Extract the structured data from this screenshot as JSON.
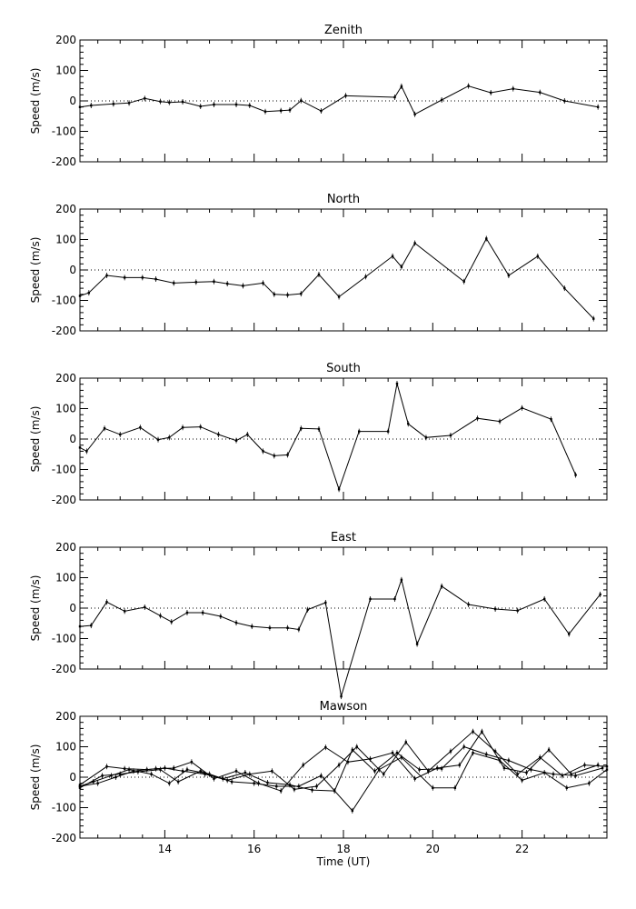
{
  "chart_data": {
    "type": "line",
    "xlabel": "Time (UT)",
    "xticks": [
      14,
      16,
      18,
      20,
      22
    ],
    "xlim": [
      12.1,
      23.9
    ],
    "panels": [
      {
        "title": "Zenith",
        "ylabel": "Speed (m/s)",
        "ylim": [
          -200,
          200
        ],
        "yticks": [
          200,
          100,
          0,
          -100,
          -200
        ],
        "series": [
          {
            "x": [
              12.1,
              12.35,
              12.85,
              13.2,
              13.55,
              13.9,
              14.1,
              14.4,
              14.8,
              15.1,
              15.6,
              15.9,
              16.25,
              16.6,
              16.8,
              17.05,
              17.5,
              18.05,
              19.15,
              19.3,
              19.6,
              20.2,
              20.8,
              21.3,
              21.8,
              22.4,
              22.95,
              23.7
            ],
            "y": [
              -20,
              -15,
              -10,
              -7,
              8,
              -2,
              -5,
              -3,
              -18,
              -12,
              -12,
              -15,
              -35,
              -32,
              -30,
              1,
              -33,
              17,
              12,
              48,
              -44,
              3,
              49,
              27,
              40,
              28,
              0,
              -20
            ]
          }
        ]
      },
      {
        "title": "North",
        "ylabel": "Speed (m/s)",
        "ylim": [
          -200,
          200
        ],
        "yticks": [
          200,
          100,
          0,
          -100,
          -200
        ],
        "series": [
          {
            "x": [
              12.1,
              12.3,
              12.7,
              13.1,
              13.5,
              13.8,
              14.2,
              14.7,
              15.1,
              15.4,
              15.75,
              16.2,
              16.45,
              16.75,
              17.05,
              17.45,
              17.9,
              18.5,
              19.1,
              19.3,
              19.6,
              20.7,
              21.2,
              21.7,
              22.35,
              22.95,
              23.6
            ],
            "y": [
              -85,
              -75,
              -18,
              -25,
              -25,
              -30,
              -43,
              -40,
              -38,
              -45,
              -52,
              -43,
              -80,
              -82,
              -78,
              -15,
              -88,
              -22,
              45,
              10,
              88,
              -38,
              103,
              -18,
              45,
              -60,
              -160
            ]
          }
        ]
      },
      {
        "title": "South",
        "ylabel": "Speed (m/s)",
        "ylim": [
          -200,
          200
        ],
        "yticks": [
          200,
          100,
          0,
          -100,
          -200
        ],
        "series": [
          {
            "x": [
              12.1,
              12.25,
              12.65,
              13.0,
              13.45,
              13.85,
              14.1,
              14.4,
              14.8,
              15.2,
              15.6,
              15.85,
              16.2,
              16.45,
              16.75,
              17.05,
              17.45,
              17.9,
              18.35,
              19.0,
              19.2,
              19.45,
              19.85,
              20.4,
              21.0,
              21.5,
              22.0,
              22.65,
              23.2
            ],
            "y": [
              -28,
              -40,
              35,
              15,
              38,
              -2,
              5,
              38,
              40,
              15,
              -5,
              15,
              -40,
              -55,
              -52,
              35,
              33,
              -165,
              25,
              25,
              182,
              50,
              5,
              12,
              68,
              58,
              102,
              65,
              -118
            ]
          }
        ]
      },
      {
        "title": "East",
        "ylabel": "Speed (m/s)",
        "ylim": [
          -200,
          200
        ],
        "yticks": [
          200,
          100,
          0,
          -100,
          -200
        ],
        "series": [
          {
            "x": [
              12.1,
              12.35,
              12.7,
              13.1,
              13.55,
              13.9,
              14.15,
              14.5,
              14.85,
              15.25,
              15.6,
              15.95,
              16.35,
              16.75,
              17.0,
              17.2,
              17.6,
              17.95,
              18.6,
              19.15,
              19.3,
              19.65,
              20.2,
              20.8,
              21.4,
              21.9,
              22.5,
              23.05,
              23.75
            ],
            "y": [
              -60,
              -57,
              20,
              -10,
              3,
              -25,
              -45,
              -15,
              -15,
              -27,
              -48,
              -60,
              -65,
              -65,
              -70,
              -5,
              18,
              -290,
              30,
              30,
              93,
              -118,
              72,
              12,
              -3,
              -8,
              30,
              -85,
              45
            ]
          }
        ]
      },
      {
        "title": "Mawson",
        "ylabel": "Speed (m/s)",
        "ylim": [
          -200,
          200
        ],
        "yticks": [
          200,
          100,
          0,
          -100,
          -200
        ],
        "series": [
          {
            "x": [
              12.1,
              12.6,
              13.0,
              13.4,
              13.9,
              14.3,
              14.8,
              15.3,
              15.8,
              16.3,
              16.8,
              17.3,
              17.8,
              18.2,
              18.7,
              19.2,
              19.7,
              20.2,
              20.7,
              21.2,
              21.7,
              22.2,
              22.7,
              23.2,
              23.8
            ],
            "y": [
              -35,
              5,
              10,
              18,
              25,
              -15,
              20,
              -5,
              15,
              -18,
              -25,
              -42,
              -45,
              90,
              20,
              80,
              25,
              28,
              100,
              75,
              55,
              25,
              10,
              5,
              30
            ]
          },
          {
            "x": [
              12.1,
              12.5,
              12.9,
              13.3,
              13.8,
              14.2,
              14.6,
              15.1,
              15.6,
              16.1,
              16.6,
              17.1,
              17.6,
              18.1,
              18.6,
              19.1,
              19.6,
              20.1,
              20.6,
              21.1,
              21.6,
              22.1,
              22.6,
              23.1,
              23.7
            ],
            "y": [
              -30,
              -20,
              0,
              20,
              28,
              30,
              50,
              -5,
              20,
              -20,
              -45,
              40,
              98,
              50,
              60,
              80,
              -5,
              30,
              40,
              150,
              30,
              15,
              90,
              10,
              40
            ]
          },
          {
            "x": [
              12.1,
              12.7,
              13.1,
              13.6,
              14.0,
              14.4,
              14.9,
              15.4,
              15.9,
              16.4,
              16.9,
              17.4,
              17.9,
              18.3,
              18.9,
              19.4,
              19.9,
              20.4,
              20.9,
              21.4,
              21.9,
              22.4,
              22.9,
              23.4,
              23.9
            ],
            "y": [
              -25,
              35,
              28,
              25,
              30,
              20,
              10,
              -10,
              10,
              20,
              -40,
              -30,
              40,
              100,
              10,
              115,
              20,
              85,
              150,
              85,
              10,
              65,
              5,
              40,
              35
            ]
          },
          {
            "x": [
              12.1,
              12.4,
              12.8,
              13.2,
              13.7,
              14.1,
              14.5,
              15.0,
              15.5,
              16.0,
              16.5,
              17.0,
              17.5,
              18.2,
              18.8,
              19.3,
              20.0,
              20.5,
              20.9,
              21.5,
              22.0,
              22.5,
              23.0,
              23.5,
              23.9
            ],
            "y": [
              -30,
              -15,
              5,
              25,
              10,
              -20,
              25,
              10,
              -15,
              -20,
              -30,
              -30,
              5,
              -110,
              25,
              65,
              -35,
              -35,
              80,
              55,
              -10,
              15,
              -35,
              -20,
              25
            ]
          }
        ]
      }
    ]
  }
}
